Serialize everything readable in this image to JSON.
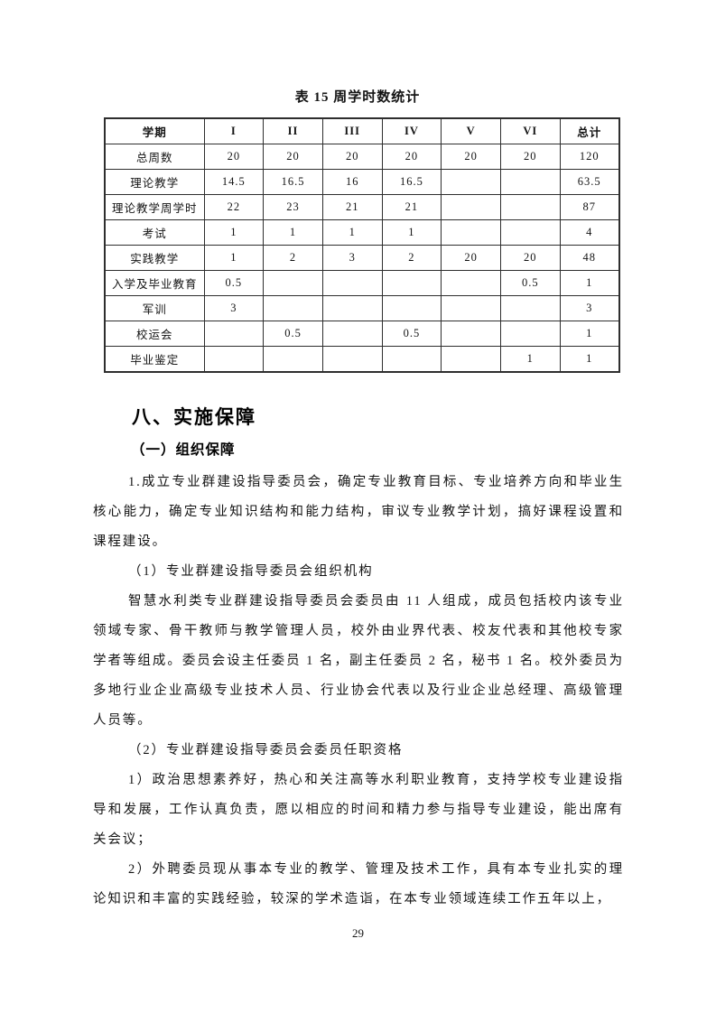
{
  "table": {
    "caption": "表 15 周学时数统计",
    "columns": [
      "学期",
      "I",
      "II",
      "III",
      "IV",
      "V",
      "VI",
      "总计"
    ],
    "rows": [
      [
        "总周数",
        "20",
        "20",
        "20",
        "20",
        "20",
        "20",
        "120"
      ],
      [
        "理论教学",
        "14.5",
        "16.5",
        "16",
        "16.5",
        "",
        "",
        "63.5"
      ],
      [
        "理论教学周学时",
        "22",
        "23",
        "21",
        "21",
        "",
        "",
        "87"
      ],
      [
        "考试",
        "1",
        "1",
        "1",
        "1",
        "",
        "",
        "4"
      ],
      [
        "实践教学",
        "1",
        "2",
        "3",
        "2",
        "20",
        "20",
        "48"
      ],
      [
        "入学及毕业教育",
        "0.5",
        "",
        "",
        "",
        "",
        "0.5",
        "1"
      ],
      [
        "军训",
        "3",
        "",
        "",
        "",
        "",
        "",
        "3"
      ],
      [
        "校运会",
        "",
        "0.5",
        "",
        "0.5",
        "",
        "",
        "1"
      ],
      [
        "毕业鉴定",
        "",
        "",
        "",
        "",
        "",
        "1",
        "1"
      ]
    ]
  },
  "section": {
    "heading": "八、实施保障",
    "subheading": "（一）组织保障",
    "paragraphs": [
      "1.成立专业群建设指导委员会，确定专业教育目标、专业培养方向和毕业生核心能力，确定专业知识结构和能力结构，审议专业教学计划，搞好课程设置和课程建设。",
      "（1）专业群建设指导委员会组织机构",
      "智慧水利类专业群建设指导委员会委员由 11 人组成，成员包括校内该专业领域专家、骨干教师与教学管理人员，校外由业界代表、校友代表和其他校专家学者等组成。委员会设主任委员 1 名，副主任委员 2 名，秘书 1 名。校外委员为多地行业企业高级专业技术人员、行业协会代表以及行业企业总经理、高级管理人员等。",
      "（2）专业群建设指导委员会委员任职资格",
      "1）政治思想素养好，热心和关注高等水利职业教育，支持学校专业建设指导和发展，工作认真负责，愿以相应的时间和精力参与指导专业建设，能出席有关会议；",
      "2）外聘委员现从事本专业的教学、管理及技术工作，具有本专业扎实的理论知识和丰富的实践经验，较深的学术造诣，在本专业领域连续工作五年以上，"
    ]
  },
  "footer": {
    "page_number": "29"
  }
}
